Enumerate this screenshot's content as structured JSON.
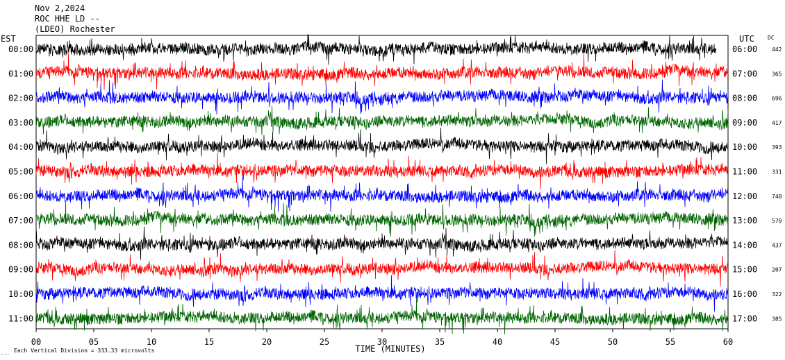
{
  "header": {
    "date": "Nov 2,2024",
    "channel": "ROC HHE LD --",
    "station": "(LDEO) Rochester"
  },
  "left_tz_label": "EST",
  "right_tz_label": "UTC",
  "dc_label": "DC",
  "footer": {
    "scale_note": "Each Vertical Division =  333.33 microvolts",
    "corner_mark": "..."
  },
  "chart_data": {
    "type": "line",
    "title": "",
    "xlabel": "TIME (MINUTES)",
    "ylabel": "",
    "xlim": [
      0,
      60
    ],
    "x_ticks": [
      "00",
      "05",
      "10",
      "15",
      "20",
      "25",
      "30",
      "35",
      "40",
      "45",
      "50",
      "55",
      "60"
    ],
    "left_hours": [
      "00:00",
      "01:00",
      "02:00",
      "03:00",
      "04:00",
      "05:00",
      "06:00",
      "07:00",
      "08:00",
      "09:00",
      "10:00",
      "11:00"
    ],
    "right_hours": [
      "06:00",
      "07:00",
      "08:00",
      "09:00",
      "10:00",
      "11:00",
      "12:00",
      "13:00",
      "14:00",
      "15:00",
      "16:00",
      "17:00"
    ],
    "dc_offsets": [
      "442",
      "365",
      "696",
      "417",
      "393",
      "331",
      "740",
      "570",
      "437",
      "207",
      "322",
      "385"
    ],
    "trace_colors": [
      "#000000",
      "#ff0000",
      "#0000ff",
      "#006400"
    ],
    "trace_end_minutes": [
      59.0,
      60,
      60,
      60,
      60,
      60,
      60,
      60,
      60,
      60,
      60,
      60
    ],
    "grid": false
  }
}
